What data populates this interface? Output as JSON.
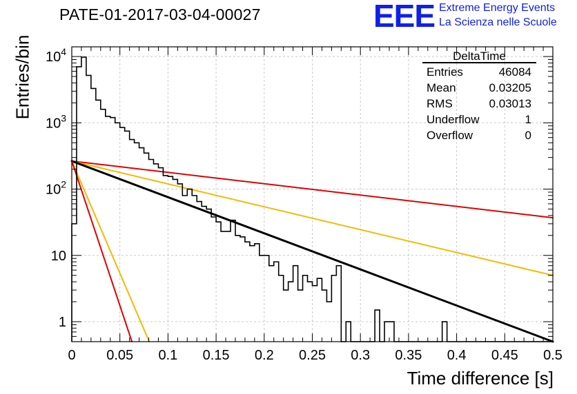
{
  "chart_data": {
    "type": "histogram",
    "title": "PATE-01-2017-03-04-00027",
    "xlabel": "Time difference [s]",
    "ylabel": "Entries/bin",
    "xlim": [
      0,
      0.5
    ],
    "ylim": [
      0.5,
      14000
    ],
    "ylog": true,
    "grid": true,
    "x_ticks": [
      0,
      0.05,
      0.1,
      0.15,
      0.2,
      0.25,
      0.3,
      0.35,
      0.4,
      0.45,
      0.5
    ],
    "x_tick_labels": [
      "0",
      "0.05",
      "0.1",
      "0.15",
      "0.2",
      "0.25",
      "0.3",
      "0.35",
      "0.4",
      "0.45",
      "0.5"
    ],
    "y_tick_labels": [
      "1",
      "10",
      "10^2",
      "10^3",
      "10^4"
    ],
    "histogram": {
      "color": "#000000",
      "bin_width": 0.005,
      "bin_start": 0,
      "values": [
        30,
        7000,
        9800,
        5200,
        3300,
        2200,
        1600,
        1250,
        1200,
        1000,
        850,
        750,
        560,
        500,
        420,
        350,
        280,
        240,
        210,
        160,
        155,
        140,
        120,
        80,
        100,
        80,
        65,
        55,
        50,
        38,
        32,
        23,
        23,
        34,
        20,
        19,
        16,
        14,
        15,
        10,
        10,
        7,
        8,
        5,
        3,
        4,
        7,
        3,
        5,
        4,
        3.5,
        4.5,
        3,
        2,
        5,
        7,
        0.5,
        1,
        0.5,
        0.5,
        0.5,
        0.5,
        0.5,
        1.5,
        0.5,
        1,
        1,
        0.5,
        0.5,
        0.5,
        0.5,
        0.5,
        0.5,
        0.5,
        0.5,
        0.5,
        0.5,
        1,
        0.5,
        0.5,
        0.5,
        0.5,
        0.5,
        0.5,
        0.5,
        0.5,
        0.5,
        0.5,
        0.5,
        0.5,
        0.5,
        0.5,
        0.5,
        0.5,
        0.5,
        0.5,
        0.5,
        0.5,
        0.5,
        0.5
      ]
    },
    "lines": [
      {
        "color": "#e00000",
        "x0": 0,
        "y0": 265,
        "x1": 0.5,
        "y1": 37,
        "width": 2
      },
      {
        "color": "#f5b800",
        "x0": 0,
        "y0": 265,
        "x1": 0.5,
        "y1": 5,
        "width": 2
      },
      {
        "color": "#000000",
        "x0": 0,
        "y0": 265,
        "x1": 0.5,
        "y1": 0.5,
        "width": 3
      },
      {
        "color": "#f5b800",
        "x0": 0,
        "y0": 265,
        "x1": 0.0805,
        "y1": 0.5,
        "width": 2
      },
      {
        "color": "#e00000",
        "x0": 0,
        "y0": 265,
        "x1": 0.0625,
        "y1": 0.5,
        "width": 2
      }
    ],
    "stats_box": {
      "name": "DeltaTime",
      "rows": [
        {
          "label": "Entries",
          "value": "46084"
        },
        {
          "label": "Mean",
          "value": "0.03205"
        },
        {
          "label": "RMS",
          "value": "0.03013"
        },
        {
          "label": "Underflow",
          "value": "1"
        },
        {
          "label": "Overflow",
          "value": "0"
        }
      ]
    }
  },
  "logo": {
    "text": "EEE",
    "line1": "Extreme Energy Events",
    "line2": "La Scienza nelle Scuole",
    "color": "#1020e8"
  }
}
